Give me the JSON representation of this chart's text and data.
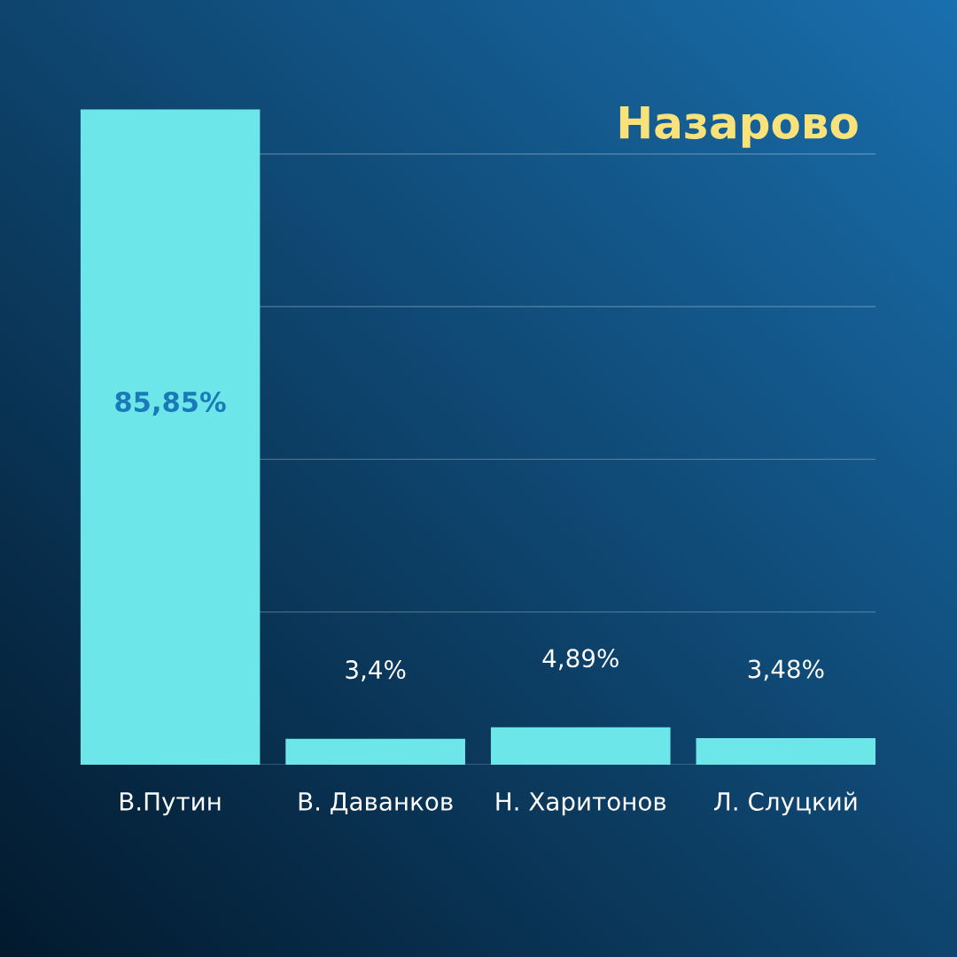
{
  "chart_data": {
    "type": "bar",
    "title": "Назарово",
    "categories": [
      "В.Путин",
      "В. Даванков",
      "Н. Харитонов",
      "Л. Слуцкий"
    ],
    "values": [
      85.85,
      3.4,
      4.89,
      3.48
    ],
    "value_labels": [
      "85,85%",
      "3,4%",
      "4,89%",
      "3,48%"
    ],
    "color": "#6ce6e8",
    "yticks": [
      {
        "value": 0,
        "label": null
      },
      {
        "value": 20,
        "label": null
      },
      {
        "value": 40,
        "label": null
      },
      {
        "value": 60,
        "label": null
      },
      {
        "value": 80,
        "label": null
      }
    ],
    "tick_labels": "x",
    "grid": "y",
    "legend": false
  }
}
